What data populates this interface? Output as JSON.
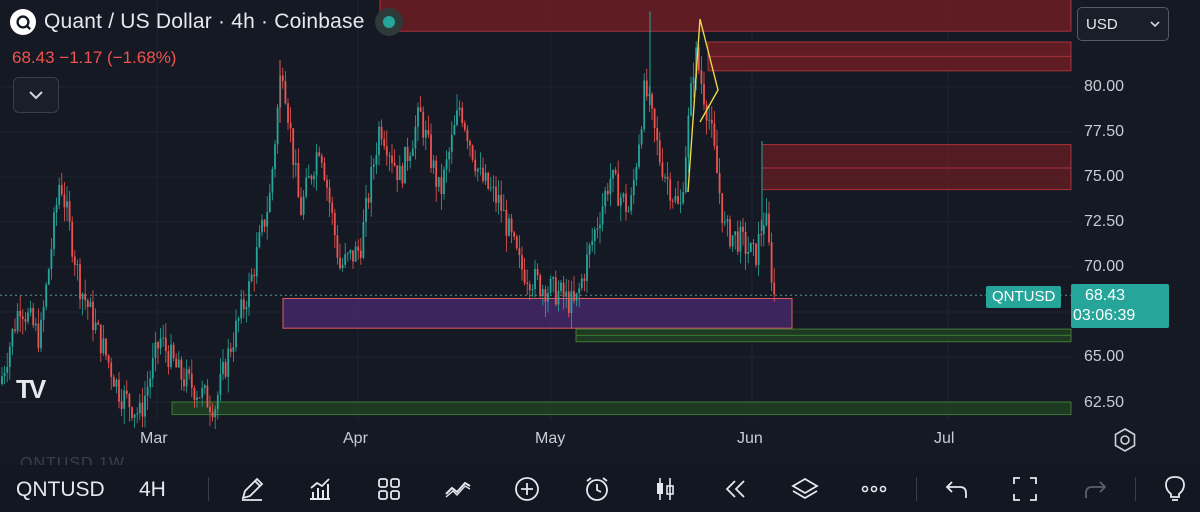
{
  "header": {
    "title": "Quant / US Dollar · 4h · Coinbase",
    "price": "68.43",
    "change": "−1.17 (−1.68%)"
  },
  "currency": {
    "selected": "USD"
  },
  "y_axis": {
    "ticks": [
      "80.00",
      "77.50",
      "75.00",
      "72.50",
      "70.00",
      "65.00",
      "62.50"
    ]
  },
  "x_axis": {
    "ticks": [
      "Mar",
      "Apr",
      "May",
      "Jun",
      "Jul"
    ]
  },
  "last_price": {
    "symbol": "QNTUSD",
    "price": "68.43",
    "countdown": "03:06:39"
  },
  "watermark": "TV",
  "ghost_text": "QNTUSD   1W",
  "toolbar": {
    "symbol": "QNTUSD",
    "interval": "4H",
    "icons": [
      "pencil-icon",
      "indicators-icon",
      "layout-grid-icon",
      "drawing-tools-icon",
      "add-icon",
      "alarm-icon",
      "candles-icon",
      "replay-icon",
      "layers-icon",
      "more-icon",
      "undo-icon",
      "fullscreen-icon",
      "redo-icon",
      "lightbulb-icon"
    ]
  },
  "colors": {
    "background": "#131722",
    "up": "#26a69a",
    "down": "#ef5350",
    "zone_red": "#5c1f24",
    "zone_purple": "#5b2d86",
    "zone_green": "#1f3a1f",
    "pattern": "#e8d84a"
  },
  "chart_data": {
    "type": "candlestick",
    "symbol": "QNTUSD",
    "interval": "4h",
    "ylim": [
      61.5,
      84.5
    ],
    "xlabels": [
      "Mar",
      "Apr",
      "May",
      "Jun",
      "Jul"
    ],
    "last_price": 68.43,
    "close_path": [
      [
        0,
        63.5
      ],
      [
        20,
        68
      ],
      [
        40,
        66
      ],
      [
        60,
        75
      ],
      [
        80,
        69
      ],
      [
        100,
        66
      ],
      [
        120,
        63
      ],
      [
        140,
        61.8
      ],
      [
        160,
        66
      ],
      [
        180,
        64
      ],
      [
        200,
        63
      ],
      [
        215,
        62.3
      ],
      [
        230,
        65.5
      ],
      [
        250,
        69
      ],
      [
        270,
        74
      ],
      [
        282,
        81.5
      ],
      [
        300,
        73
      ],
      [
        320,
        77
      ],
      [
        340,
        70
      ],
      [
        360,
        71
      ],
      [
        380,
        78
      ],
      [
        400,
        75
      ],
      [
        420,
        78.5
      ],
      [
        440,
        74
      ],
      [
        460,
        79
      ],
      [
        480,
        75
      ],
      [
        500,
        73.5
      ],
      [
        520,
        70
      ],
      [
        540,
        69
      ],
      [
        560,
        68.5
      ],
      [
        575,
        67.8
      ],
      [
        590,
        71
      ],
      [
        610,
        75
      ],
      [
        630,
        73
      ],
      [
        645,
        80
      ],
      [
        660,
        76
      ],
      [
        680,
        73
      ],
      [
        695,
        82
      ],
      [
        710,
        78
      ],
      [
        725,
        72
      ],
      [
        740,
        71.5
      ],
      [
        755,
        70.5
      ],
      [
        765,
        73
      ],
      [
        775,
        68
      ]
    ],
    "zones": [
      {
        "name": "top-supply",
        "type": "resistance",
        "ymin": 83.1,
        "ymax": 85
      },
      {
        "name": "upper-supply",
        "type": "resistance",
        "ymin": 80.9,
        "ymax": 82.5
      },
      {
        "name": "mid-supply",
        "type": "resistance",
        "ymin": 74.3,
        "ymax": 76.8
      },
      {
        "name": "purple-demand",
        "type": "demand",
        "ymin": 66.6,
        "ymax": 68.25
      },
      {
        "name": "green-demand-1",
        "type": "support",
        "ymin": 65.85,
        "ymax": 66.55
      },
      {
        "name": "green-demand-2",
        "type": "support",
        "ymin": 61.8,
        "ymax": 62.5
      }
    ]
  }
}
